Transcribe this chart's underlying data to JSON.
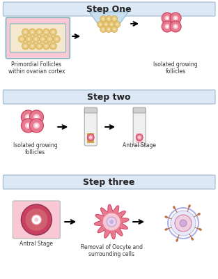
{
  "bg_color": "#ffffff",
  "step_header_color": "#dce8f5",
  "step_border_color": "#a0b8d0",
  "step_one_text": "Step One",
  "step_two_text": "Step two",
  "step_three_text": "Step three",
  "label1": "Primordial Follicles\nwithin ovarian cortex",
  "label2": "Isolated growing\nfollicles",
  "label3": "Isolated growing\nfollicles",
  "label4": "Antral Stage",
  "label5": "Antral Stage",
  "label6": "Removal of Oocyte and\nsurrounding cells",
  "pink_light": "#f9c8d4",
  "pink_medium": "#e87a90",
  "pink_dark": "#c94060",
  "gold": "#d4a843",
  "gold_light": "#e8c87a",
  "teal_border": "#7ab8c0",
  "blue_light": "#c8dff0",
  "purple_light": "#c8a8d8"
}
